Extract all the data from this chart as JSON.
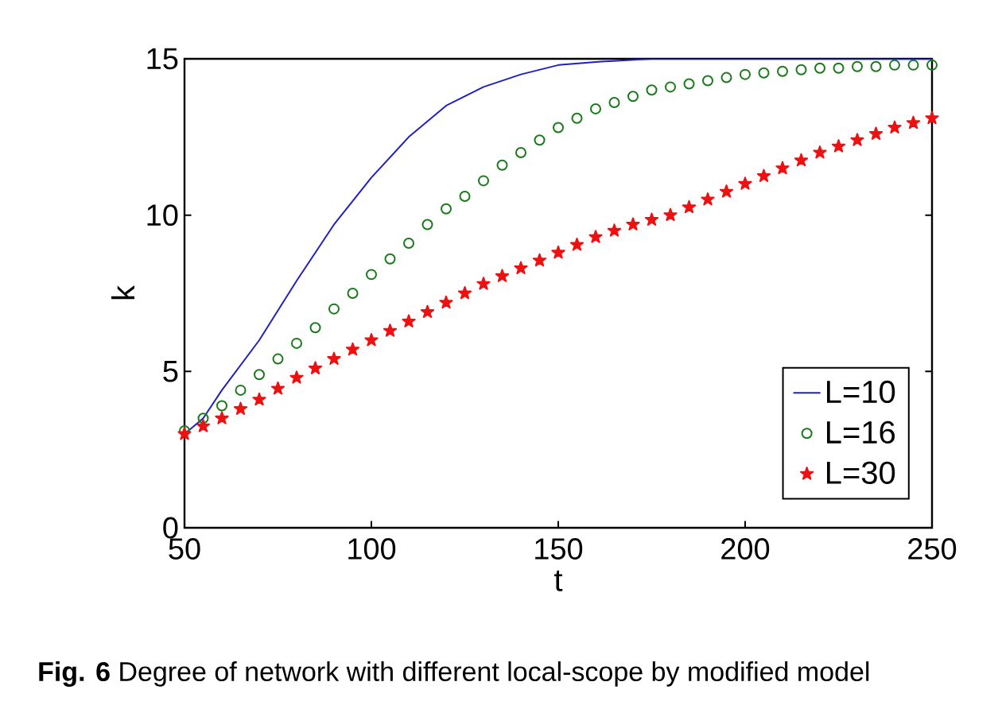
{
  "chart_data": {
    "type": "line",
    "xlabel": "t",
    "ylabel": "k",
    "xlim": [
      50,
      250
    ],
    "ylim": [
      0,
      15
    ],
    "xticks": [
      50,
      100,
      150,
      200,
      250
    ],
    "yticks": [
      0,
      5,
      10,
      15
    ],
    "grid": false,
    "legend": "bottom right",
    "annotations": [
      "**Fig. 6** Degree of network with different local-scope by modified model"
    ],
    "series": [
      {
        "name": "L=10",
        "color": "#2020c0",
        "marker": "none",
        "x": [
          50,
          55,
          60,
          70,
          80,
          90,
          100,
          110,
          120,
          130,
          140,
          150,
          160,
          175,
          200,
          250
        ],
        "values": [
          3,
          3.5,
          4.4,
          6.0,
          7.9,
          9.7,
          11.2,
          12.5,
          13.5,
          14.1,
          14.5,
          14.8,
          14.9,
          15,
          15,
          15
        ]
      },
      {
        "name": "L=16",
        "type": "scatter",
        "color": "#1a7a1a",
        "marker": "circle",
        "x": [
          50,
          55,
          60,
          65,
          70,
          75,
          80,
          85,
          90,
          95,
          100,
          105,
          110,
          115,
          120,
          125,
          130,
          135,
          140,
          145,
          150,
          155,
          160,
          165,
          170,
          175,
          180,
          185,
          190,
          195,
          200,
          205,
          210,
          215,
          220,
          225,
          230,
          235,
          240,
          245,
          250
        ],
        "values": [
          3.1,
          3.5,
          3.9,
          4.4,
          4.9,
          5.4,
          5.9,
          6.4,
          7.0,
          7.5,
          8.1,
          8.6,
          9.1,
          9.7,
          10.2,
          10.6,
          11.1,
          11.6,
          12.0,
          12.4,
          12.8,
          13.1,
          13.4,
          13.6,
          13.8,
          14.0,
          14.1,
          14.2,
          14.3,
          14.4,
          14.5,
          14.55,
          14.6,
          14.65,
          14.7,
          14.7,
          14.75,
          14.75,
          14.8,
          14.8,
          14.8
        ]
      },
      {
        "name": "L=30",
        "type": "scatter",
        "color": "#ee1111",
        "marker": "star",
        "x": [
          50,
          55,
          60,
          65,
          70,
          75,
          80,
          85,
          90,
          95,
          100,
          105,
          110,
          115,
          120,
          125,
          130,
          135,
          140,
          145,
          150,
          155,
          160,
          165,
          170,
          175,
          180,
          185,
          190,
          195,
          200,
          205,
          210,
          215,
          220,
          225,
          230,
          235,
          240,
          245,
          250
        ],
        "values": [
          3.0,
          3.25,
          3.5,
          3.8,
          4.1,
          4.45,
          4.8,
          5.1,
          5.4,
          5.7,
          6.0,
          6.3,
          6.6,
          6.9,
          7.2,
          7.5,
          7.8,
          8.05,
          8.3,
          8.55,
          8.8,
          9.05,
          9.3,
          9.5,
          9.7,
          9.85,
          10.0,
          10.25,
          10.5,
          10.75,
          11.0,
          11.25,
          11.5,
          11.75,
          12.0,
          12.2,
          12.4,
          12.6,
          12.8,
          12.95,
          13.1
        ]
      }
    ]
  }
}
